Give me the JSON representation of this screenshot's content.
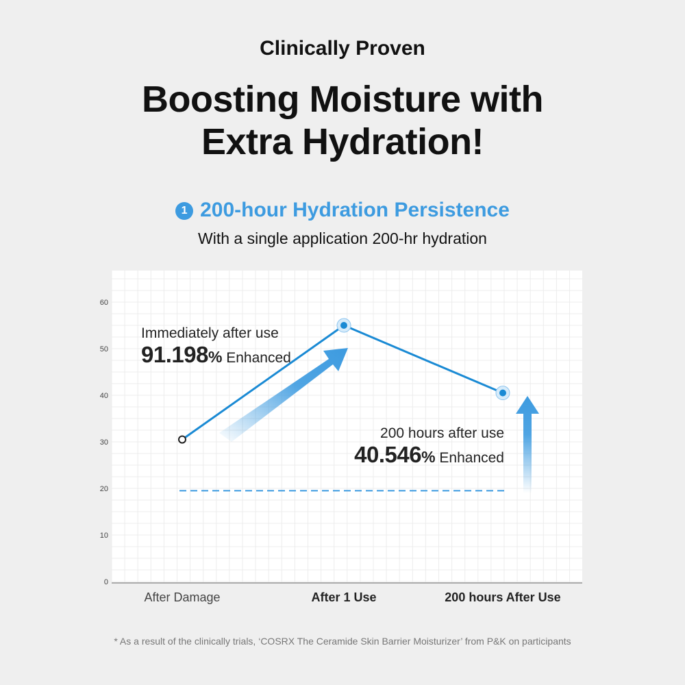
{
  "header": {
    "kicker": "Clinically Proven",
    "title_line1": "Boosting Moisture with",
    "title_line2": "Extra Hydration!"
  },
  "section": {
    "number": "1",
    "title": "200-hour Hydration Persistence",
    "subtitle": "With a single application 200-hr hydration"
  },
  "chart_data": {
    "type": "line",
    "categories": [
      "After Damage",
      "After 1 Use",
      "200 hours After Use"
    ],
    "values": [
      30.5,
      55,
      40.5
    ],
    "baseline": 19.5,
    "ylim": [
      0,
      60
    ],
    "yticks": [
      0,
      10,
      20,
      30,
      40,
      50,
      60
    ],
    "grid": true,
    "colors": {
      "line": "#1a8ad4",
      "arrow": "#3d9be0",
      "dash": "#3d9be0"
    },
    "annotations": [
      {
        "label": "Immediately after use",
        "value": "91.198",
        "unit": "%",
        "suffix": "Enhanced"
      },
      {
        "label": "200 hours after use",
        "value": "40.546",
        "unit": "%",
        "suffix": "Enhanced"
      }
    ]
  },
  "footnote": "* As a result of the clinically trials, ‘COSRX The Ceramide Skin Barrier Moisturizer’ from P&K on participants"
}
